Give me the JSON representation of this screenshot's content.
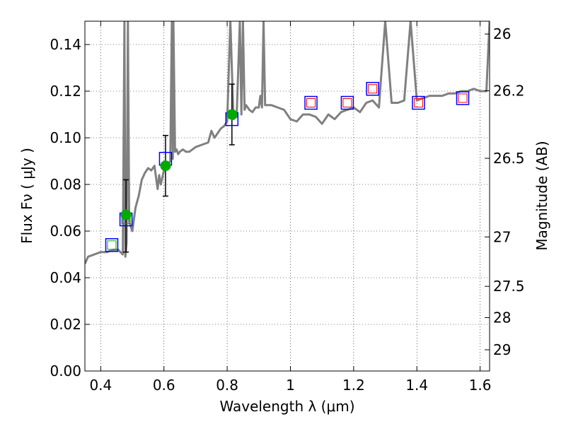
{
  "chart_data": {
    "type": "scatter",
    "title": "",
    "xlabel": "Wavelength  λ (μm)",
    "ylabel": "Flux  Fν  ( μJy )",
    "ylabel_right": "Magnitude (AB)",
    "xlim": [
      0.35,
      1.63
    ],
    "ylim": [
      0.0,
      0.15
    ],
    "grid": true,
    "x_ticks": [
      {
        "value": 0.4,
        "label": "0.4"
      },
      {
        "value": 0.6,
        "label": "0.6"
      },
      {
        "value": 0.8,
        "label": "0.8"
      },
      {
        "value": 1.0,
        "label": "1"
      },
      {
        "value": 1.2,
        "label": "1.2"
      },
      {
        "value": 1.4,
        "label": "1.4"
      },
      {
        "value": 1.6,
        "label": "1.6"
      }
    ],
    "y_ticks": [
      {
        "value": 0.0,
        "label": "0.00"
      },
      {
        "value": 0.02,
        "label": "0.02"
      },
      {
        "value": 0.04,
        "label": "0.04"
      },
      {
        "value": 0.06,
        "label": "0.06"
      },
      {
        "value": 0.08,
        "label": "0.08"
      },
      {
        "value": 0.1,
        "label": "0.10"
      },
      {
        "value": 0.12,
        "label": "0.12"
      },
      {
        "value": 0.14,
        "label": "0.14"
      }
    ],
    "right_ticks": [
      {
        "label": "26",
        "flux": 0.1445
      },
      {
        "label": "26.2",
        "flux": 0.1202
      },
      {
        "label": "26.5",
        "flux": 0.0912
      },
      {
        "label": "27",
        "flux": 0.0575
      },
      {
        "label": "27.5",
        "flux": 0.0363
      },
      {
        "label": "28",
        "flux": 0.0229
      },
      {
        "label": "29",
        "flux": 0.0091
      }
    ],
    "series": [
      {
        "kind": "spectrum-line",
        "color": "#808080",
        "x": [
          0.35,
          0.36,
          0.38,
          0.4,
          0.42,
          0.44,
          0.455,
          0.47,
          0.475,
          0.478,
          0.482,
          0.486,
          0.49,
          0.5,
          0.51,
          0.52,
          0.53,
          0.54,
          0.55,
          0.56,
          0.57,
          0.58,
          0.585,
          0.59,
          0.6,
          0.61,
          0.62,
          0.625,
          0.628,
          0.63,
          0.635,
          0.64,
          0.645,
          0.65,
          0.66,
          0.67,
          0.68,
          0.7,
          0.72,
          0.74,
          0.75,
          0.76,
          0.77,
          0.78,
          0.79,
          0.8,
          0.81,
          0.82,
          0.83,
          0.84,
          0.845,
          0.85,
          0.855,
          0.86,
          0.87,
          0.88,
          0.89,
          0.9,
          0.905,
          0.91,
          0.915,
          0.92,
          0.94,
          0.96,
          0.98,
          1.0,
          1.02,
          1.04,
          1.06,
          1.08,
          1.1,
          1.12,
          1.14,
          1.16,
          1.18,
          1.2,
          1.22,
          1.24,
          1.26,
          1.28,
          1.3,
          1.32,
          1.34,
          1.36,
          1.38,
          1.4,
          1.42,
          1.44,
          1.46,
          1.48,
          1.5,
          1.52,
          1.54,
          1.56,
          1.58,
          1.6,
          1.62,
          1.63
        ],
        "y": [
          0.046,
          0.049,
          0.05,
          0.051,
          0.051,
          0.052,
          0.052,
          0.05,
          0.15,
          0.049,
          0.055,
          0.15,
          0.064,
          0.06,
          0.07,
          0.075,
          0.082,
          0.085,
          0.087,
          0.086,
          0.088,
          0.078,
          0.084,
          0.08,
          0.086,
          0.088,
          0.09,
          0.15,
          0.091,
          0.15,
          0.094,
          0.095,
          0.093,
          0.094,
          0.095,
          0.094,
          0.094,
          0.096,
          0.097,
          0.098,
          0.103,
          0.1,
          0.102,
          0.104,
          0.105,
          0.107,
          0.15,
          0.108,
          0.109,
          0.15,
          0.11,
          0.15,
          0.112,
          0.114,
          0.112,
          0.111,
          0.113,
          0.113,
          0.118,
          0.113,
          0.15,
          0.114,
          0.114,
          0.113,
          0.112,
          0.108,
          0.107,
          0.11,
          0.11,
          0.109,
          0.106,
          0.11,
          0.108,
          0.111,
          0.112,
          0.113,
          0.111,
          0.115,
          0.116,
          0.113,
          0.15,
          0.115,
          0.115,
          0.116,
          0.15,
          0.116,
          0.117,
          0.118,
          0.118,
          0.118,
          0.119,
          0.119,
          0.12,
          0.12,
          0.121,
          0.12,
          0.12,
          0.15
        ]
      },
      {
        "kind": "errorbar-points",
        "color": "#00aa00",
        "x": [
          0.48,
          0.605,
          0.815
        ],
        "y": [
          0.067,
          0.088,
          0.11
        ],
        "err_low": [
          0.051,
          0.075,
          0.097
        ],
        "err_high": [
          0.082,
          0.101,
          0.123
        ]
      },
      {
        "kind": "open-squares",
        "color": "#0000ff",
        "x": [
          0.435,
          0.48,
          0.605,
          0.815,
          1.065,
          1.18,
          1.26,
          1.405,
          1.545
        ],
        "y": [
          0.054,
          0.065,
          0.091,
          0.108,
          0.115,
          0.115,
          0.121,
          0.115,
          0.117
        ]
      },
      {
        "kind": "inner-squares-green",
        "color": "#00aa00",
        "x": [
          0.435,
          0.48
        ],
        "y": [
          0.054,
          0.065
        ]
      },
      {
        "kind": "inner-squares-red",
        "color": "#ff0000",
        "x": [
          1.065,
          1.18,
          1.26,
          1.405,
          1.545
        ],
        "y": [
          0.115,
          0.115,
          0.121,
          0.115,
          0.117
        ]
      }
    ]
  }
}
